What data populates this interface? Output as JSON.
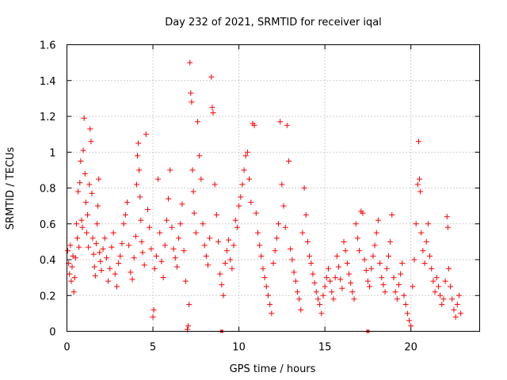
{
  "chart_data": {
    "type": "scatter",
    "title": "Day 232 of 2021, SRMTID for receiver iqal",
    "xlabel": "GPS time / hours",
    "ylabel": "SRMTID / TECUs",
    "xlim": [
      0,
      24
    ],
    "ylim": [
      0,
      1.6
    ],
    "x_ticks": [
      0,
      5,
      10,
      15,
      20
    ],
    "x_tick_labels": [
      "0",
      "5",
      "10",
      "15",
      "20"
    ],
    "y_ticks": [
      0,
      0.2,
      0.4,
      0.6,
      0.8,
      1.0,
      1.2,
      1.4,
      1.6
    ],
    "y_tick_labels": [
      "0",
      "0.2",
      "0.4",
      "0.6",
      "0.8",
      "1",
      "1.2",
      "1.4",
      "1.6"
    ],
    "grid": true,
    "marker": "plus",
    "color": "#ff0000",
    "series": [
      {
        "name": "SRMTID",
        "points": [
          [
            0.05,
            0.45
          ],
          [
            0.1,
            0.38
          ],
          [
            0.15,
            0.32
          ],
          [
            0.2,
            0.48
          ],
          [
            0.25,
            0.28
          ],
          [
            0.3,
            0.36
          ],
          [
            0.35,
            0.42
          ],
          [
            0.4,
            0.22
          ],
          [
            0.45,
            0.3
          ],
          [
            0.5,
            0.41
          ],
          [
            0.55,
            0.6
          ],
          [
            0.6,
            0.52
          ],
          [
            0.65,
            0.78
          ],
          [
            0.7,
            0.47
          ],
          [
            0.75,
            0.83
          ],
          [
            0.8,
            0.95
          ],
          [
            0.85,
            0.62
          ],
          [
            0.9,
            0.58
          ],
          [
            0.95,
            1.01
          ],
          [
            1.0,
            1.19
          ],
          [
            1.05,
            0.88
          ],
          [
            1.1,
            0.72
          ],
          [
            1.15,
            0.55
          ],
          [
            1.2,
            0.65
          ],
          [
            1.25,
            0.47
          ],
          [
            1.3,
            0.82
          ],
          [
            1.35,
            1.13
          ],
          [
            1.4,
            1.06
          ],
          [
            1.45,
            0.77
          ],
          [
            1.5,
            0.52
          ],
          [
            1.55,
            0.43
          ],
          [
            1.6,
            0.36
          ],
          [
            1.65,
            0.31
          ],
          [
            1.7,
            0.49
          ],
          [
            1.75,
            0.6
          ],
          [
            1.8,
            0.7
          ],
          [
            1.85,
            0.85
          ],
          [
            1.9,
            0.44
          ],
          [
            1.95,
            0.39
          ],
          [
            2.0,
            0.34
          ],
          [
            2.1,
            0.46
          ],
          [
            2.2,
            0.52
          ],
          [
            2.3,
            0.41
          ],
          [
            2.4,
            0.28
          ],
          [
            2.5,
            0.35
          ],
          [
            2.6,
            0.47
          ],
          [
            2.7,
            0.55
          ],
          [
            2.8,
            0.32
          ],
          [
            2.9,
            0.25
          ],
          [
            3.0,
            0.38
          ],
          [
            3.1,
            0.42
          ],
          [
            3.2,
            0.49
          ],
          [
            3.3,
            0.6
          ],
          [
            3.4,
            0.65
          ],
          [
            3.5,
            0.72
          ],
          [
            3.6,
            0.48
          ],
          [
            3.7,
            0.33
          ],
          [
            3.8,
            0.29
          ],
          [
            3.9,
            0.41
          ],
          [
            4.0,
            0.53
          ],
          [
            4.05,
            0.82
          ],
          [
            4.1,
            0.98
          ],
          [
            4.15,
            1.05
          ],
          [
            4.2,
            0.9
          ],
          [
            4.25,
            0.75
          ],
          [
            4.3,
            0.62
          ],
          [
            4.35,
            0.5
          ],
          [
            4.4,
            0.44
          ],
          [
            4.5,
            0.37
          ],
          [
            4.6,
            1.1
          ],
          [
            4.7,
            0.68
          ],
          [
            4.8,
            0.58
          ],
          [
            4.9,
            0.46
          ],
          [
            5.0,
            0.08
          ],
          [
            5.05,
            0.12
          ],
          [
            5.1,
            0.35
          ],
          [
            5.2,
            0.42
          ],
          [
            5.3,
            0.85
          ],
          [
            5.4,
            0.55
          ],
          [
            5.5,
            0.39
          ],
          [
            5.6,
            0.3
          ],
          [
            5.7,
            0.48
          ],
          [
            5.8,
            0.62
          ],
          [
            5.9,
            0.74
          ],
          [
            6.0,
            0.9
          ],
          [
            6.1,
            0.58
          ],
          [
            6.2,
            0.46
          ],
          [
            6.3,
            0.41
          ],
          [
            6.4,
            0.36
          ],
          [
            6.5,
            0.52
          ],
          [
            6.6,
            0.6
          ],
          [
            6.7,
            0.71
          ],
          [
            6.8,
            0.45
          ],
          [
            6.9,
            0.28
          ],
          [
            7.0,
            0.01
          ],
          [
            7.05,
            0.03
          ],
          [
            7.1,
            0.15
          ],
          [
            7.15,
            1.5
          ],
          [
            7.2,
            1.33
          ],
          [
            7.25,
            1.28
          ],
          [
            7.3,
            0.9
          ],
          [
            7.35,
            0.78
          ],
          [
            7.4,
            0.66
          ],
          [
            7.5,
            0.55
          ],
          [
            7.6,
            1.17
          ],
          [
            7.7,
            0.98
          ],
          [
            7.8,
            0.85
          ],
          [
            7.9,
            0.6
          ],
          [
            8.0,
            0.48
          ],
          [
            8.1,
            0.42
          ],
          [
            8.2,
            0.37
          ],
          [
            8.3,
            0.52
          ],
          [
            8.4,
            1.42
          ],
          [
            8.45,
            1.25
          ],
          [
            8.5,
            1.22
          ],
          [
            8.6,
            0.82
          ],
          [
            8.7,
            0.65
          ],
          [
            8.8,
            0.5
          ],
          [
            8.9,
            0.32
          ],
          [
            9.0,
            0.26
          ],
          [
            9.1,
            0.2
          ],
          [
            9.2,
            0.38
          ],
          [
            9.3,
            0.45
          ],
          [
            9.4,
            0.51
          ],
          [
            9.5,
            0.4
          ],
          [
            9.6,
            0.35
          ],
          [
            9.7,
            0.48
          ],
          [
            9.8,
            0.62
          ],
          [
            9.9,
            0.58
          ],
          [
            10.0,
            0.7
          ],
          [
            10.1,
            0.75
          ],
          [
            10.2,
            0.82
          ],
          [
            10.3,
            0.9
          ],
          [
            10.4,
            0.98
          ],
          [
            10.5,
            1.0
          ],
          [
            10.6,
            0.85
          ],
          [
            10.7,
            0.72
          ],
          [
            10.8,
            1.16
          ],
          [
            10.9,
            1.15
          ],
          [
            11.0,
            0.66
          ],
          [
            11.1,
            0.55
          ],
          [
            11.2,
            0.48
          ],
          [
            11.3,
            0.42
          ],
          [
            11.4,
            0.35
          ],
          [
            11.5,
            0.3
          ],
          [
            11.6,
            0.25
          ],
          [
            11.7,
            0.2
          ],
          [
            11.8,
            0.15
          ],
          [
            11.9,
            0.1
          ],
          [
            12.0,
            0.38
          ],
          [
            12.1,
            0.45
          ],
          [
            12.2,
            0.52
          ],
          [
            12.3,
            0.6
          ],
          [
            12.4,
            1.17
          ],
          [
            12.5,
            0.82
          ],
          [
            12.6,
            0.7
          ],
          [
            12.7,
            0.58
          ],
          [
            12.8,
            1.15
          ],
          [
            12.9,
            0.95
          ],
          [
            13.0,
            0.46
          ],
          [
            13.1,
            0.4
          ],
          [
            13.2,
            0.33
          ],
          [
            13.3,
            0.28
          ],
          [
            13.4,
            0.22
          ],
          [
            13.5,
            0.18
          ],
          [
            13.6,
            0.12
          ],
          [
            13.7,
            0.55
          ],
          [
            13.8,
            0.8
          ],
          [
            13.9,
            0.65
          ],
          [
            14.0,
            0.5
          ],
          [
            14.1,
            0.42
          ],
          [
            14.2,
            0.38
          ],
          [
            14.3,
            0.32
          ],
          [
            14.4,
            0.27
          ],
          [
            14.5,
            0.22
          ],
          [
            14.6,
            0.18
          ],
          [
            14.7,
            0.15
          ],
          [
            14.8,
            0.1
          ],
          [
            14.9,
            0.2
          ],
          [
            15.0,
            0.25
          ],
          [
            15.1,
            0.3
          ],
          [
            15.2,
            0.35
          ],
          [
            15.3,
            0.28
          ],
          [
            15.4,
            0.22
          ],
          [
            15.5,
            0.18
          ],
          [
            15.6,
            0.3
          ],
          [
            15.7,
            0.42
          ],
          [
            15.8,
            0.36
          ],
          [
            15.9,
            0.29
          ],
          [
            16.0,
            0.24
          ],
          [
            16.1,
            0.5
          ],
          [
            16.2,
            0.45
          ],
          [
            16.3,
            0.38
          ],
          [
            16.4,
            0.32
          ],
          [
            16.5,
            0.27
          ],
          [
            16.6,
            0.22
          ],
          [
            16.7,
            0.18
          ],
          [
            16.8,
            0.6
          ],
          [
            16.9,
            0.52
          ],
          [
            17.0,
            0.45
          ],
          [
            17.1,
            0.67
          ],
          [
            17.2,
            0.66
          ],
          [
            17.3,
            0.4
          ],
          [
            17.4,
            0.34
          ],
          [
            17.5,
            0.28
          ],
          [
            17.6,
            0.25
          ],
          [
            17.7,
            0.35
          ],
          [
            17.8,
            0.42
          ],
          [
            17.9,
            0.48
          ],
          [
            18.0,
            0.55
          ],
          [
            18.1,
            0.62
          ],
          [
            18.2,
            0.38
          ],
          [
            18.3,
            0.3
          ],
          [
            18.4,
            0.26
          ],
          [
            18.5,
            0.22
          ],
          [
            18.6,
            0.35
          ],
          [
            18.7,
            0.42
          ],
          [
            18.8,
            0.5
          ],
          [
            18.9,
            0.65
          ],
          [
            19.0,
            0.3
          ],
          [
            19.1,
            0.22
          ],
          [
            19.2,
            0.18
          ],
          [
            19.3,
            0.26
          ],
          [
            19.4,
            0.32
          ],
          [
            19.5,
            0.38
          ],
          [
            19.6,
            0.2
          ],
          [
            19.7,
            0.15
          ],
          [
            19.8,
            0.1
          ],
          [
            19.9,
            0.06
          ],
          [
            20.0,
            0.03
          ],
          [
            20.1,
            0.25
          ],
          [
            20.2,
            0.4
          ],
          [
            20.3,
            0.6
          ],
          [
            20.4,
            0.82
          ],
          [
            20.45,
            1.06
          ],
          [
            20.5,
            0.85
          ],
          [
            20.55,
            0.78
          ],
          [
            20.6,
            0.55
          ],
          [
            20.7,
            0.45
          ],
          [
            20.8,
            0.38
          ],
          [
            20.9,
            0.5
          ],
          [
            21.0,
            0.6
          ],
          [
            21.1,
            0.42
          ],
          [
            21.2,
            0.35
          ],
          [
            21.3,
            0.28
          ],
          [
            21.4,
            0.22
          ],
          [
            21.5,
            0.3
          ],
          [
            21.6,
            0.25
          ],
          [
            21.7,
            0.2
          ],
          [
            21.8,
            0.15
          ],
          [
            21.9,
            0.18
          ],
          [
            22.0,
            0.28
          ],
          [
            22.1,
            0.64
          ],
          [
            22.15,
            0.58
          ],
          [
            22.2,
            0.35
          ],
          [
            22.3,
            0.25
          ],
          [
            22.4,
            0.18
          ],
          [
            22.5,
            0.12
          ],
          [
            22.6,
            0.08
          ],
          [
            22.7,
            0.15
          ],
          [
            22.8,
            0.2
          ],
          [
            22.9,
            0.1
          ]
        ]
      }
    ],
    "axis_markers": [
      {
        "x": 9.0,
        "y": 0
      },
      {
        "x": 17.5,
        "y": 0
      }
    ]
  }
}
